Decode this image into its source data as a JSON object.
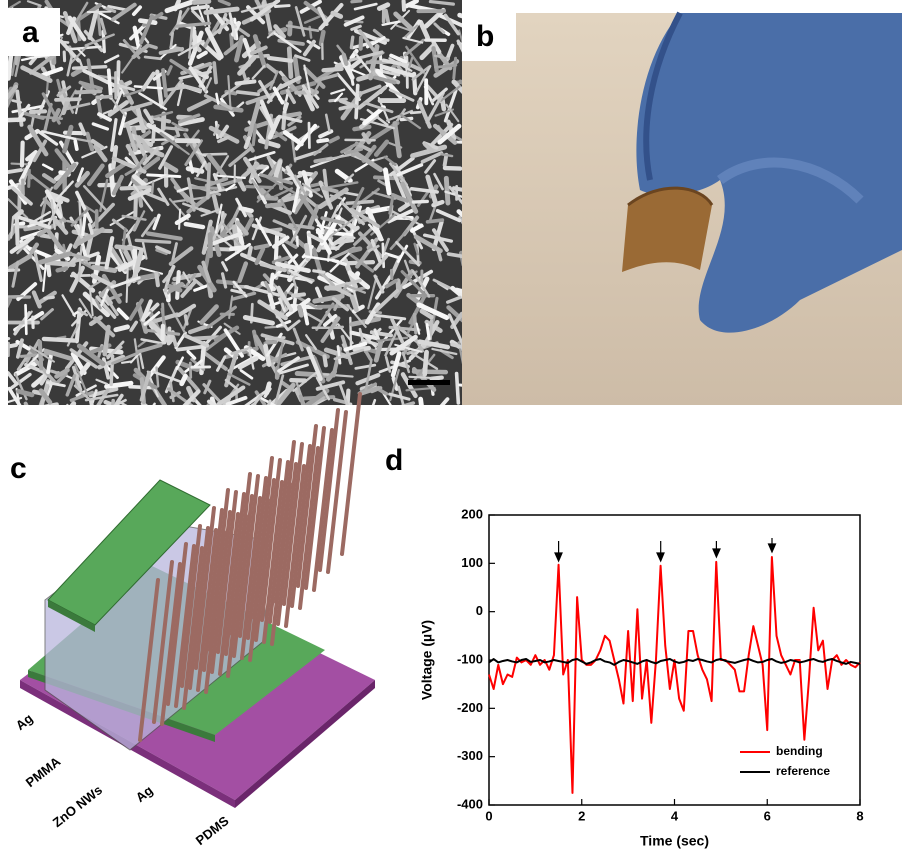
{
  "panel_labels": [
    "a",
    "b",
    "c",
    "d"
  ],
  "diagram": {
    "layer_labels": [
      "Ag",
      "PMMA",
      "ZnO NWs",
      "Ag",
      "PDMS"
    ]
  },
  "chart_data": {
    "type": "line",
    "x_label": "Time (sec)",
    "y_label": "Voltage (µV)",
    "xlim": [
      0,
      8
    ],
    "xticks": [
      0,
      2,
      4,
      6,
      8
    ],
    "ylim": [
      -400,
      200
    ],
    "yticks": [
      -400,
      -300,
      -200,
      -100,
      0,
      100,
      200
    ],
    "legend": "lower right",
    "x": [
      0,
      0.1,
      0.2,
      0.3,
      0.4,
      0.5,
      0.6,
      0.7,
      0.8,
      0.9,
      1,
      1.1,
      1.2,
      1.3,
      1.4,
      1.5,
      1.6,
      1.7,
      1.8,
      1.9,
      2,
      2.1,
      2.2,
      2.3,
      2.4,
      2.5,
      2.6,
      2.7,
      2.8,
      2.9,
      3,
      3.1,
      3.2,
      3.3,
      3.4,
      3.5,
      3.6,
      3.7,
      3.8,
      3.9,
      4,
      4.1,
      4.2,
      4.3,
      4.4,
      4.5,
      4.6,
      4.7,
      4.8,
      4.9,
      5,
      5.1,
      5.2,
      5.3,
      5.4,
      5.5,
      5.6,
      5.7,
      5.8,
      5.9,
      6,
      6.1,
      6.2,
      6.3,
      6.4,
      6.5,
      6.6,
      6.7,
      6.8,
      6.9,
      7,
      7.1,
      7.2,
      7.3,
      7.4,
      7.5,
      7.6,
      7.7,
      7.8,
      7.9,
      8
    ],
    "series": [
      {
        "name": "bending",
        "color": "#ff0000",
        "values": [
          -130,
          -160,
          -110,
          -150,
          -130,
          -135,
          -95,
          -105,
          -100,
          -110,
          -90,
          -110,
          -100,
          -120,
          -90,
          97,
          -130,
          -100,
          -375,
          30,
          -100,
          -110,
          -110,
          -100,
          -80,
          -50,
          -60,
          -100,
          -140,
          -190,
          -40,
          -185,
          5,
          -180,
          -100,
          -230,
          -100,
          95,
          -70,
          -160,
          -100,
          -180,
          -205,
          -40,
          -40,
          -90,
          -120,
          -140,
          -185,
          103,
          -100,
          -100,
          -110,
          -120,
          -165,
          -165,
          -90,
          -30,
          -70,
          -110,
          -245,
          113,
          -50,
          -90,
          -110,
          -130,
          -100,
          -100,
          -265,
          -140,
          8,
          -80,
          -60,
          -160,
          -100,
          -90,
          -110,
          -100,
          -110,
          -115,
          -105
        ]
      },
      {
        "name": "reference",
        "color": "#000000",
        "values": [
          -105,
          -98,
          -105,
          -102,
          -100,
          -103,
          -105,
          -100,
          -98,
          -104,
          -102,
          -100,
          -105,
          -103,
          -100,
          -102,
          -104,
          -106,
          -100,
          -98,
          -103,
          -108,
          -105,
          -100,
          -98,
          -103,
          -105,
          -110,
          -104,
          -100,
          -102,
          -105,
          -108,
          -103,
          -100,
          -104,
          -107,
          -102,
          -100,
          -98,
          -103,
          -106,
          -104,
          -100,
          -102,
          -98,
          -100,
          -103,
          -105,
          -100,
          -98,
          -102,
          -104,
          -106,
          -103,
          -100,
          -98,
          -102,
          -105,
          -104,
          -100,
          -98,
          -103,
          -106,
          -104,
          -100,
          -102,
          -105,
          -103,
          -100,
          -98,
          -102,
          -104,
          -100,
          -98,
          -102,
          -105,
          -108,
          -104,
          -106,
          -108
        ]
      }
    ]
  }
}
